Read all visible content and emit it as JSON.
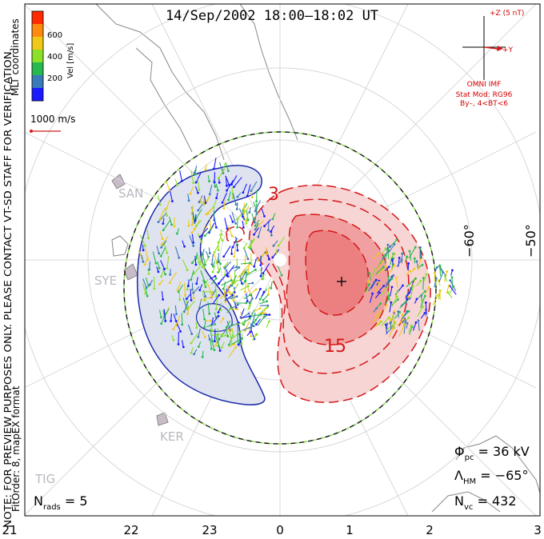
{
  "title": "14/Sep/2002 18:00–18:02 UT",
  "side_note": "NOTE: FOR PREVIEW PURPOSES ONLY. PLEASE CONTACT VT-SD STAFF FOR VERIFICATION.",
  "fit_order": "FitOrder: 8, mapEX format",
  "coord_system": "MLT coordinates",
  "colorbar": {
    "label": "Vel [m/s]",
    "ticks": [
      "200",
      "400",
      "600"
    ],
    "colors": [
      "#1a1aff",
      "#3a7ab8",
      "#28b850",
      "#8be028",
      "#f0c818",
      "#ff8a10",
      "#ff2a00"
    ]
  },
  "vector_scale": "1000 m/s",
  "imf": {
    "label_z": "+Z (5 nT)",
    "label_y": "+Y",
    "source": "OMNI IMF",
    "model": "Stat Mod: RG96",
    "condition": "By–, 4<BT<6"
  },
  "latitude_labels": [
    "−60°",
    "−50°"
  ],
  "mlt_labels": [
    "21",
    "22",
    "23",
    "0",
    "1",
    "2",
    "3"
  ],
  "contour_labels": [
    "3",
    "15"
  ],
  "radars": [
    "SAN",
    "SYE",
    "KER",
    "TIG"
  ],
  "stats": {
    "phi_pc": "36 kV",
    "lambda_hm": "−65°",
    "n_vc": "432",
    "n_rads": "5"
  },
  "colors": {
    "negative_cell": "#dfe3f0",
    "negative_contour": "#1a2aa8",
    "positive_cell": "#f08a8a",
    "positive_contour": "#d41818",
    "hmb": "#7dd83a",
    "coast": "#888888"
  }
}
